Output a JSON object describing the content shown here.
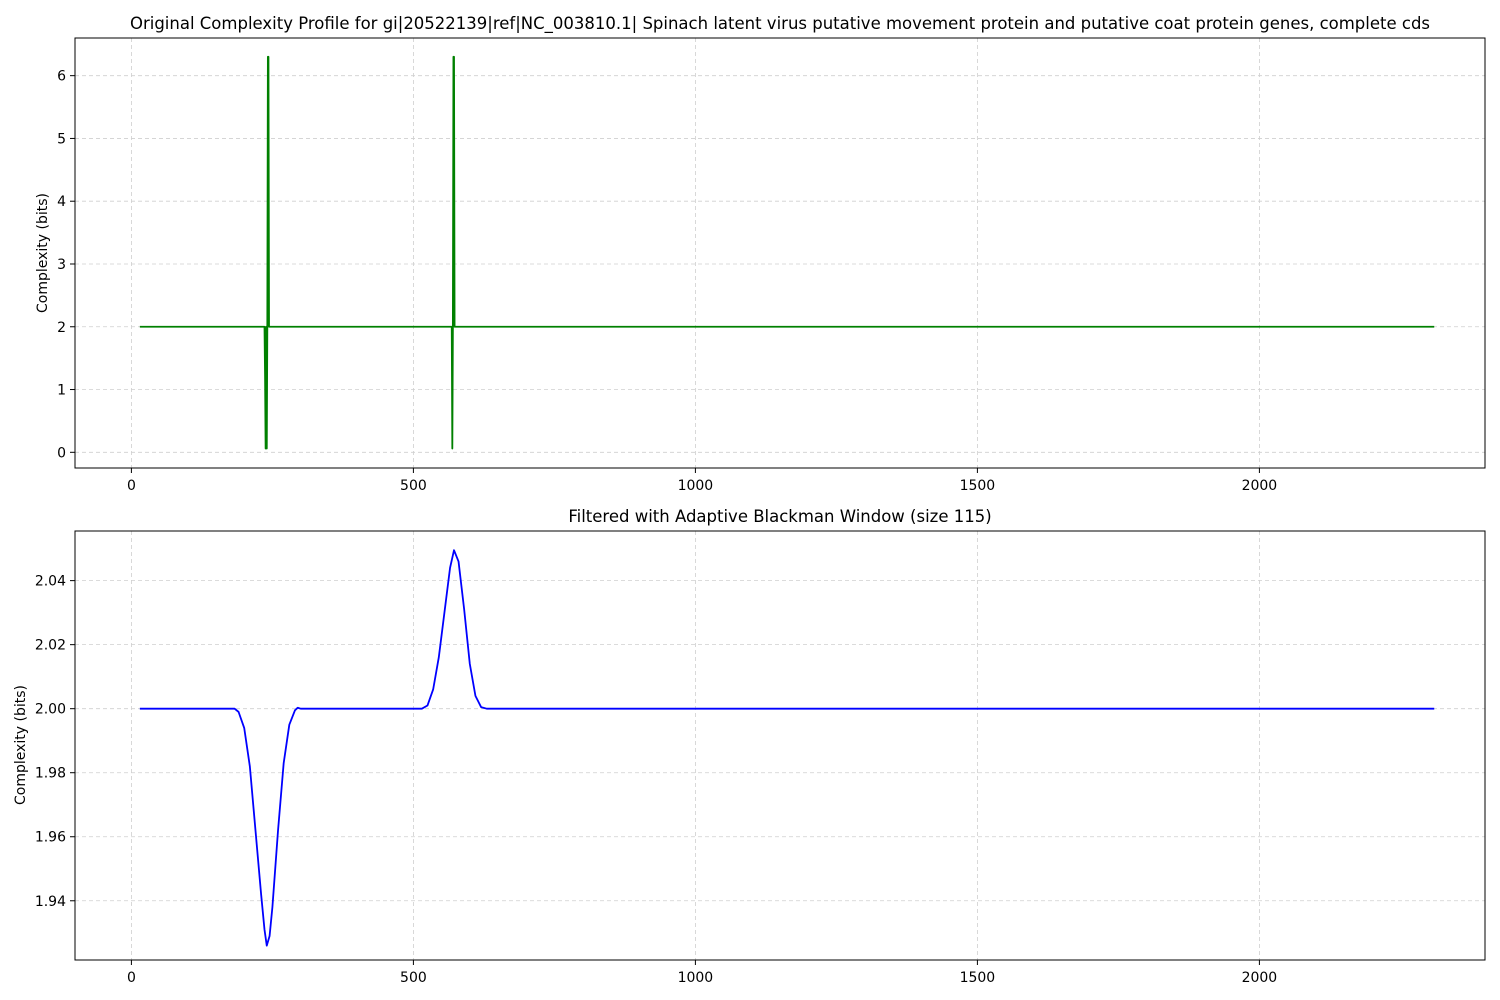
{
  "chart_data": [
    {
      "type": "line",
      "title": "Original Complexity Profile for gi|20522139|ref|NC_003810.1| Spinach latent virus putative movement protein and putative coat protein genes, complete cds",
      "xlabel": "",
      "ylabel": "Complexity (bits)",
      "xlim": [
        -100,
        2400
      ],
      "ylim": [
        -0.25,
        6.6
      ],
      "xticks": [
        0,
        500,
        1000,
        1500,
        2000
      ],
      "xtick_labels": [
        "0",
        "500",
        "1000",
        "1500",
        "2000"
      ],
      "yticks": [
        0,
        1,
        2,
        3,
        4,
        5,
        6
      ],
      "ytick_labels": [
        "0",
        "1",
        "2",
        "3",
        "4",
        "5",
        "6"
      ],
      "grid": true,
      "color": "#008000",
      "series": [
        {
          "x": [
            15,
            236,
            237,
            238,
            239,
            240,
            241,
            242,
            243,
            244,
            245,
            246,
            247,
            568,
            569,
            570,
            571,
            572,
            573,
            574,
            2310
          ],
          "y": [
            2,
            2,
            1.2,
            0.06,
            2.0,
            0.06,
            2.0,
            6.3,
            6.3,
            2.0,
            2.0,
            2.0,
            2.0,
            2.0,
            0.06,
            2.0,
            6.3,
            6.3,
            2.0,
            2.0,
            2.0
          ]
        }
      ]
    },
    {
      "type": "line",
      "title": "Filtered with Adaptive Blackman Window (size 115)",
      "xlabel": "",
      "ylabel": "Complexity (bits)",
      "xlim": [
        -100,
        2400
      ],
      "ylim": [
        1.9215,
        2.0555
      ],
      "xticks": [
        0,
        500,
        1000,
        1500,
        2000
      ],
      "xtick_labels": [
        "0",
        "500",
        "1000",
        "1500",
        "2000"
      ],
      "yticks": [
        1.94,
        1.96,
        1.98,
        2.0,
        2.02,
        2.04
      ],
      "ytick_labels": [
        "1.94",
        "1.96",
        "1.98",
        "2.00",
        "2.02",
        "2.04"
      ],
      "grid": true,
      "color": "#0000ff",
      "series": [
        {
          "x": [
            15,
            183,
            190,
            200,
            210,
            220,
            230,
            236,
            240,
            245,
            250,
            260,
            270,
            280,
            290,
            295,
            300,
            515,
            525,
            535,
            545,
            555,
            565,
            572,
            580,
            590,
            600,
            610,
            620,
            630,
            2310
          ],
          "y": [
            2.0,
            2.0,
            1.999,
            1.994,
            1.982,
            1.962,
            1.942,
            1.931,
            1.926,
            1.929,
            1.938,
            1.962,
            1.983,
            1.995,
            1.9995,
            2.0003,
            2.0,
            2.0,
            2.001,
            2.006,
            2.016,
            2.03,
            2.044,
            2.0495,
            2.046,
            2.031,
            2.014,
            2.004,
            2.0005,
            2.0,
            2.0
          ]
        }
      ]
    }
  ]
}
